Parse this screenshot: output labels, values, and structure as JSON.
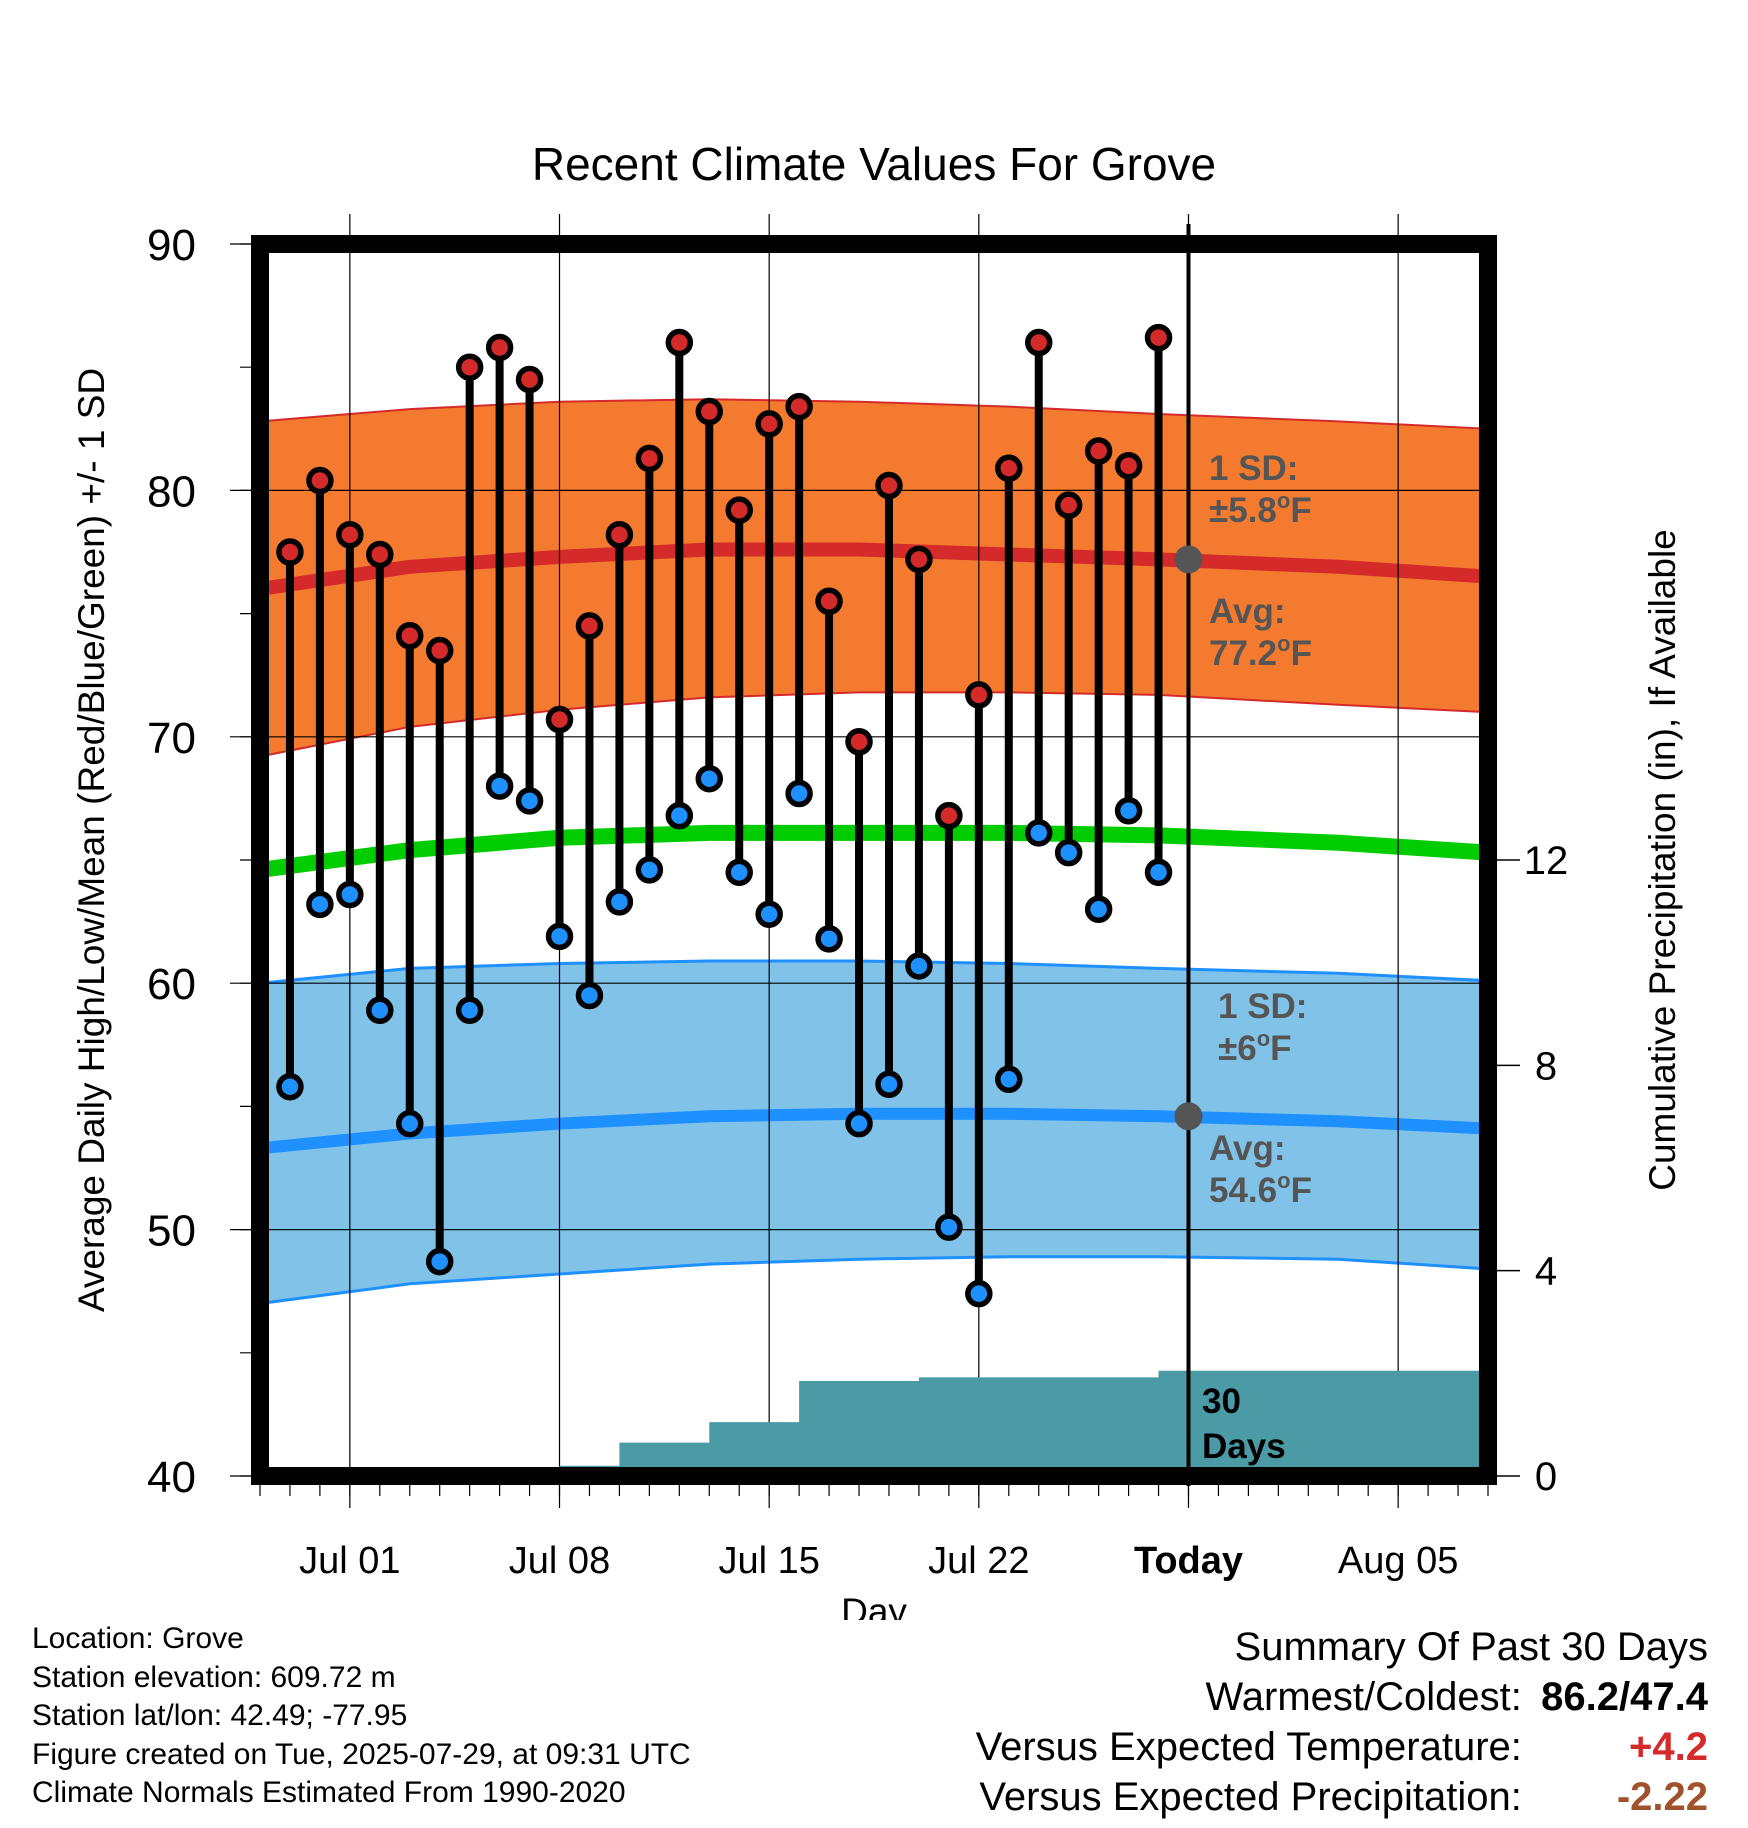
{
  "chart_data": {
    "type": "line",
    "title": "Recent Climate Values For Grove",
    "xlabel": "Day",
    "ylabel": "Average Daily High/Low/Mean (Red/Blue/Green) +/- 1 SD",
    "y2label": "Cumulative Precipitation (in), If Available",
    "ylim": [
      40,
      90
    ],
    "y_ticks": [
      40,
      50,
      60,
      70,
      80,
      90
    ],
    "y2lim": [
      0,
      24
    ],
    "y2_ticks": [
      0,
      4,
      8,
      12
    ],
    "x_ticks": [
      {
        "date": "2025-07-01",
        "label": "Jul 01"
      },
      {
        "date": "2025-07-08",
        "label": "Jul 08"
      },
      {
        "date": "2025-07-15",
        "label": "Jul 15"
      },
      {
        "date": "2025-07-22",
        "label": "Jul 22"
      },
      {
        "date": "2025-07-29",
        "label": "Today"
      },
      {
        "date": "2025-08-05",
        "label": "Aug 05"
      }
    ],
    "xlim": [
      "2025-06-28",
      "2025-08-08"
    ],
    "grid": true,
    "today": "2025-07-29",
    "dates": [
      "2025-06-29",
      "2025-06-30",
      "2025-07-01",
      "2025-07-02",
      "2025-07-03",
      "2025-07-04",
      "2025-07-05",
      "2025-07-06",
      "2025-07-07",
      "2025-07-08",
      "2025-07-09",
      "2025-07-10",
      "2025-07-11",
      "2025-07-12",
      "2025-07-13",
      "2025-07-14",
      "2025-07-15",
      "2025-07-16",
      "2025-07-17",
      "2025-07-18",
      "2025-07-19",
      "2025-07-20",
      "2025-07-21",
      "2025-07-22",
      "2025-07-23",
      "2025-07-24",
      "2025-07-25",
      "2025-07-26",
      "2025-07-27",
      "2025-07-28"
    ],
    "series": [
      {
        "name": "High",
        "color": "#d42a2a",
        "values": [
          77.5,
          80.4,
          78.2,
          77.4,
          74.1,
          73.5,
          85.0,
          85.8,
          84.5,
          70.7,
          74.5,
          78.2,
          81.3,
          86.0,
          83.2,
          79.2,
          82.7,
          83.4,
          75.5,
          69.8,
          80.2,
          77.2,
          66.8,
          71.7,
          80.9,
          86.0,
          79.4,
          81.6,
          81.0,
          86.2
        ]
      },
      {
        "name": "Low",
        "color": "#1e90ff",
        "values": [
          55.8,
          63.2,
          63.6,
          58.9,
          54.3,
          48.7,
          58.9,
          68.0,
          67.4,
          61.9,
          59.5,
          63.3,
          64.6,
          66.8,
          68.3,
          64.5,
          62.8,
          67.7,
          61.8,
          54.3,
          55.9,
          60.7,
          50.1,
          47.4,
          56.1,
          66.1,
          65.3,
          63.0,
          67.0,
          64.5
        ]
      }
    ],
    "normals": {
      "x": [
        "2025-06-28",
        "2025-07-03",
        "2025-07-08",
        "2025-07-13",
        "2025-07-18",
        "2025-07-23",
        "2025-07-28",
        "2025-08-03",
        "2025-08-08"
      ],
      "high_mean": [
        76.0,
        76.9,
        77.3,
        77.6,
        77.6,
        77.4,
        77.2,
        76.9,
        76.5
      ],
      "high_sd_band": [
        [
          69.2,
          82.8
        ],
        [
          70.4,
          83.3
        ],
        [
          71.1,
          83.6
        ],
        [
          71.6,
          83.7
        ],
        [
          71.8,
          83.6
        ],
        [
          71.8,
          83.4
        ],
        [
          71.7,
          83.1
        ],
        [
          71.3,
          82.8
        ],
        [
          71.0,
          82.5
        ]
      ],
      "mean": [
        64.6,
        65.4,
        65.9,
        66.1,
        66.1,
        66.1,
        66.0,
        65.7,
        65.3
      ],
      "low_mean": [
        53.3,
        53.9,
        54.3,
        54.6,
        54.7,
        54.7,
        54.6,
        54.4,
        54.1
      ],
      "low_sd_band": [
        [
          47.0,
          60.0
        ],
        [
          47.8,
          60.6
        ],
        [
          48.2,
          60.8
        ],
        [
          48.6,
          60.9
        ],
        [
          48.8,
          60.9
        ],
        [
          48.9,
          60.8
        ],
        [
          48.9,
          60.6
        ],
        [
          48.8,
          60.4
        ],
        [
          48.4,
          60.1
        ]
      ],
      "colors": {
        "high_band": "#f47a30",
        "high_line": "#d42a2a",
        "mean_line": "#00cc00",
        "low_band": "#80c2e8",
        "low_line": "#1e90ff"
      }
    },
    "precip": {
      "color": "#4a9ba6",
      "x": [
        "2025-07-06",
        "2025-07-07",
        "2025-07-08",
        "2025-07-09",
        "2025-07-10",
        "2025-07-11",
        "2025-07-12",
        "2025-07-13",
        "2025-07-14",
        "2025-07-15",
        "2025-07-16",
        "2025-07-17",
        "2025-07-18",
        "2025-07-19",
        "2025-07-20",
        "2025-07-21",
        "2025-07-22",
        "2025-07-23",
        "2025-07-24",
        "2025-07-25",
        "2025-07-26",
        "2025-07-27",
        "2025-07-28",
        "2025-08-08"
      ],
      "values": [
        0.0,
        0.0,
        0.2,
        0.2,
        0.65,
        0.65,
        0.65,
        1.05,
        1.05,
        1.05,
        1.85,
        1.85,
        1.85,
        1.85,
        1.92,
        1.92,
        1.92,
        1.92,
        1.92,
        1.92,
        1.92,
        1.92,
        2.05,
        2.05
      ]
    },
    "annotations": {
      "high_sd": {
        "line1": "1 SD:",
        "line2": "±5.8",
        "unit": "F"
      },
      "high_avg": {
        "line1": "Avg:",
        "line2": "77.2",
        "unit": "F",
        "value": 77.2
      },
      "low_sd": {
        "line1": "1 SD:",
        "line2": "±6",
        "unit": "F"
      },
      "low_avg": {
        "line1": "Avg:",
        "line2": "54.6",
        "unit": "F",
        "value": 54.6
      },
      "degree": "o",
      "precip_label1": "30",
      "precip_label2": "Days"
    }
  },
  "footer": {
    "location": "Location: Grove",
    "elevation": "Station elevation: 609.72 m",
    "latlon": "Station lat/lon: 42.49; -77.95",
    "created": "Figure created on Tue, 2025-07-29, at 09:31 UTC",
    "normals": "Climate Normals Estimated From 1990-2020"
  },
  "summary": {
    "title": "Summary Of Past 30 Days",
    "warm_cold_label": "Warmest/Coldest:",
    "warm_cold_value": "86.2/47.4",
    "temp_label": "Versus Expected Temperature:",
    "temp_value": "+4.2",
    "temp_color": "#d42a2a",
    "precip_label": "Versus Expected Precipitation:",
    "precip_value": "-2.22",
    "precip_color": "#a0522d"
  }
}
